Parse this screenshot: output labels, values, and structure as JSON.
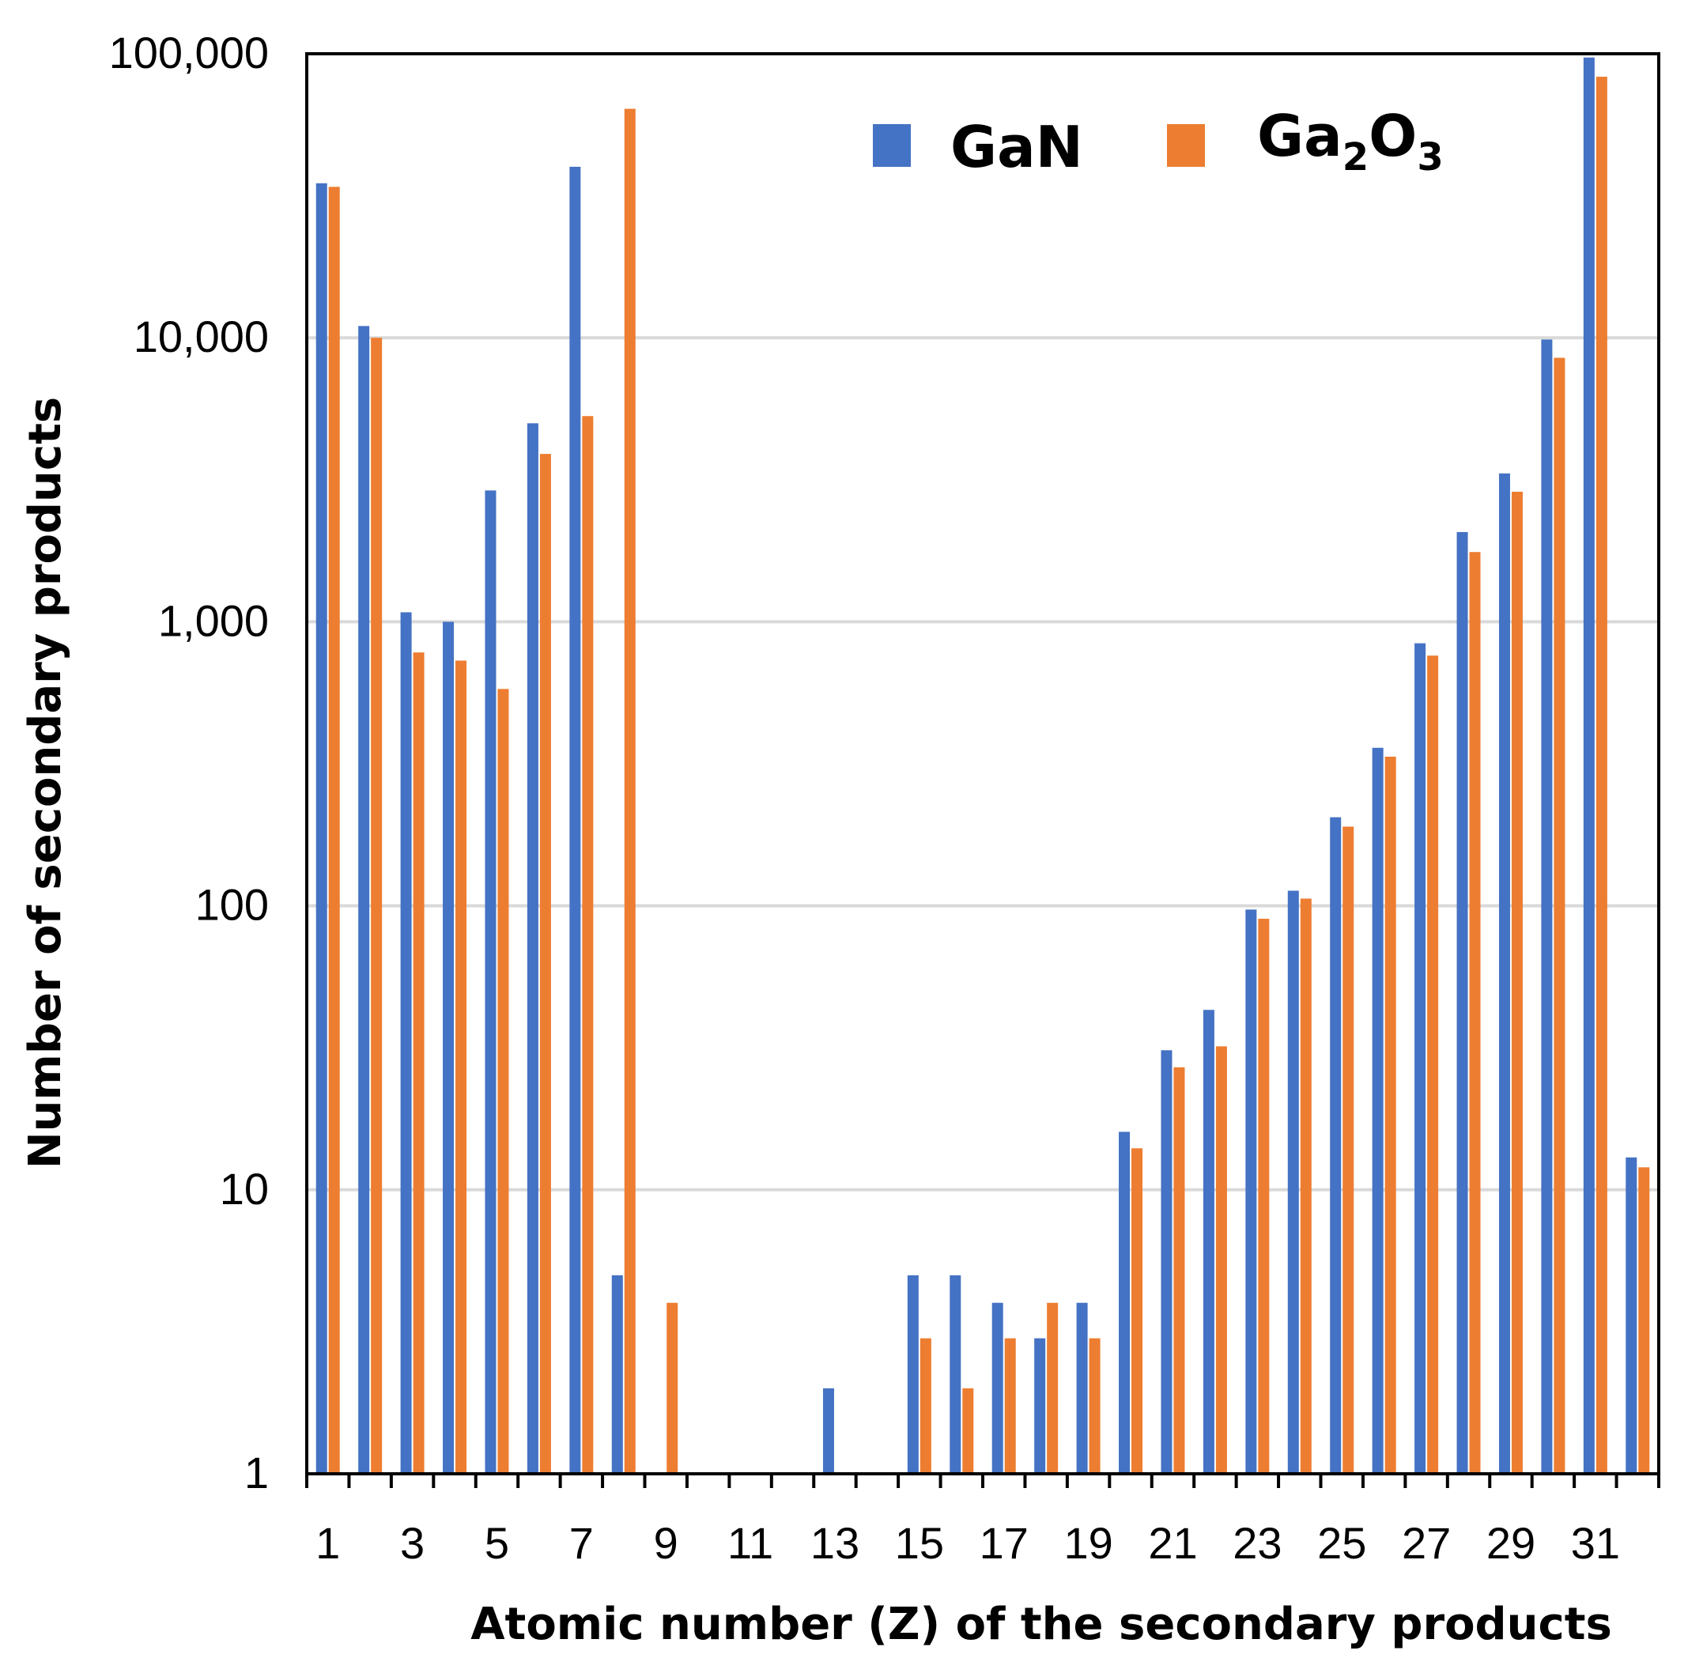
{
  "chart_data": {
    "type": "bar",
    "scale": "log",
    "title": "",
    "xlabel": "Atomic number (Z) of the secondary products",
    "ylabel": "Number of secondary products",
    "ylim": [
      1,
      100000
    ],
    "y_ticks": [
      1,
      10,
      100,
      1000,
      10000,
      100000
    ],
    "y_tick_labels": [
      "1",
      "10",
      "100",
      "1,000",
      "10,000",
      "100,000"
    ],
    "categories": [
      1,
      2,
      3,
      4,
      5,
      6,
      7,
      8,
      9,
      10,
      11,
      12,
      13,
      14,
      15,
      16,
      17,
      18,
      19,
      20,
      21,
      22,
      23,
      24,
      25,
      26,
      27,
      28,
      29,
      30,
      31,
      32
    ],
    "x_tick_labels": [
      "1",
      "3",
      "5",
      "7",
      "9",
      "11",
      "13",
      "15",
      "17",
      "19",
      "21",
      "23",
      "25",
      "27",
      "29",
      "31"
    ],
    "x_tick_label_values": [
      1,
      3,
      5,
      7,
      9,
      11,
      13,
      15,
      17,
      19,
      21,
      23,
      25,
      27,
      29,
      31
    ],
    "grid": true,
    "legend_position": "top-right",
    "series": [
      {
        "name": "GaN",
        "label_main": "GaN",
        "color": "#4472C4",
        "values": [
          35000,
          11000,
          1080,
          1000,
          2900,
          5000,
          40000,
          5,
          null,
          null,
          null,
          null,
          2,
          null,
          5,
          5,
          4,
          3,
          4,
          16,
          31,
          43,
          97,
          113,
          205,
          360,
          840,
          2070,
          3330,
          9860,
          97000,
          13
        ]
      },
      {
        "name": "Ga2O3",
        "label_main": "Ga",
        "label_sub1": "2",
        "label_mid": "O",
        "label_sub2": "3",
        "color": "#ED7D31",
        "values": [
          34000,
          10000,
          780,
          730,
          580,
          3900,
          5300,
          64000,
          4,
          null,
          null,
          null,
          null,
          null,
          3,
          2,
          3,
          4,
          3,
          14,
          27,
          32,
          90,
          106,
          190,
          335,
          760,
          1760,
          2870,
          8500,
          83000,
          12
        ]
      }
    ]
  }
}
